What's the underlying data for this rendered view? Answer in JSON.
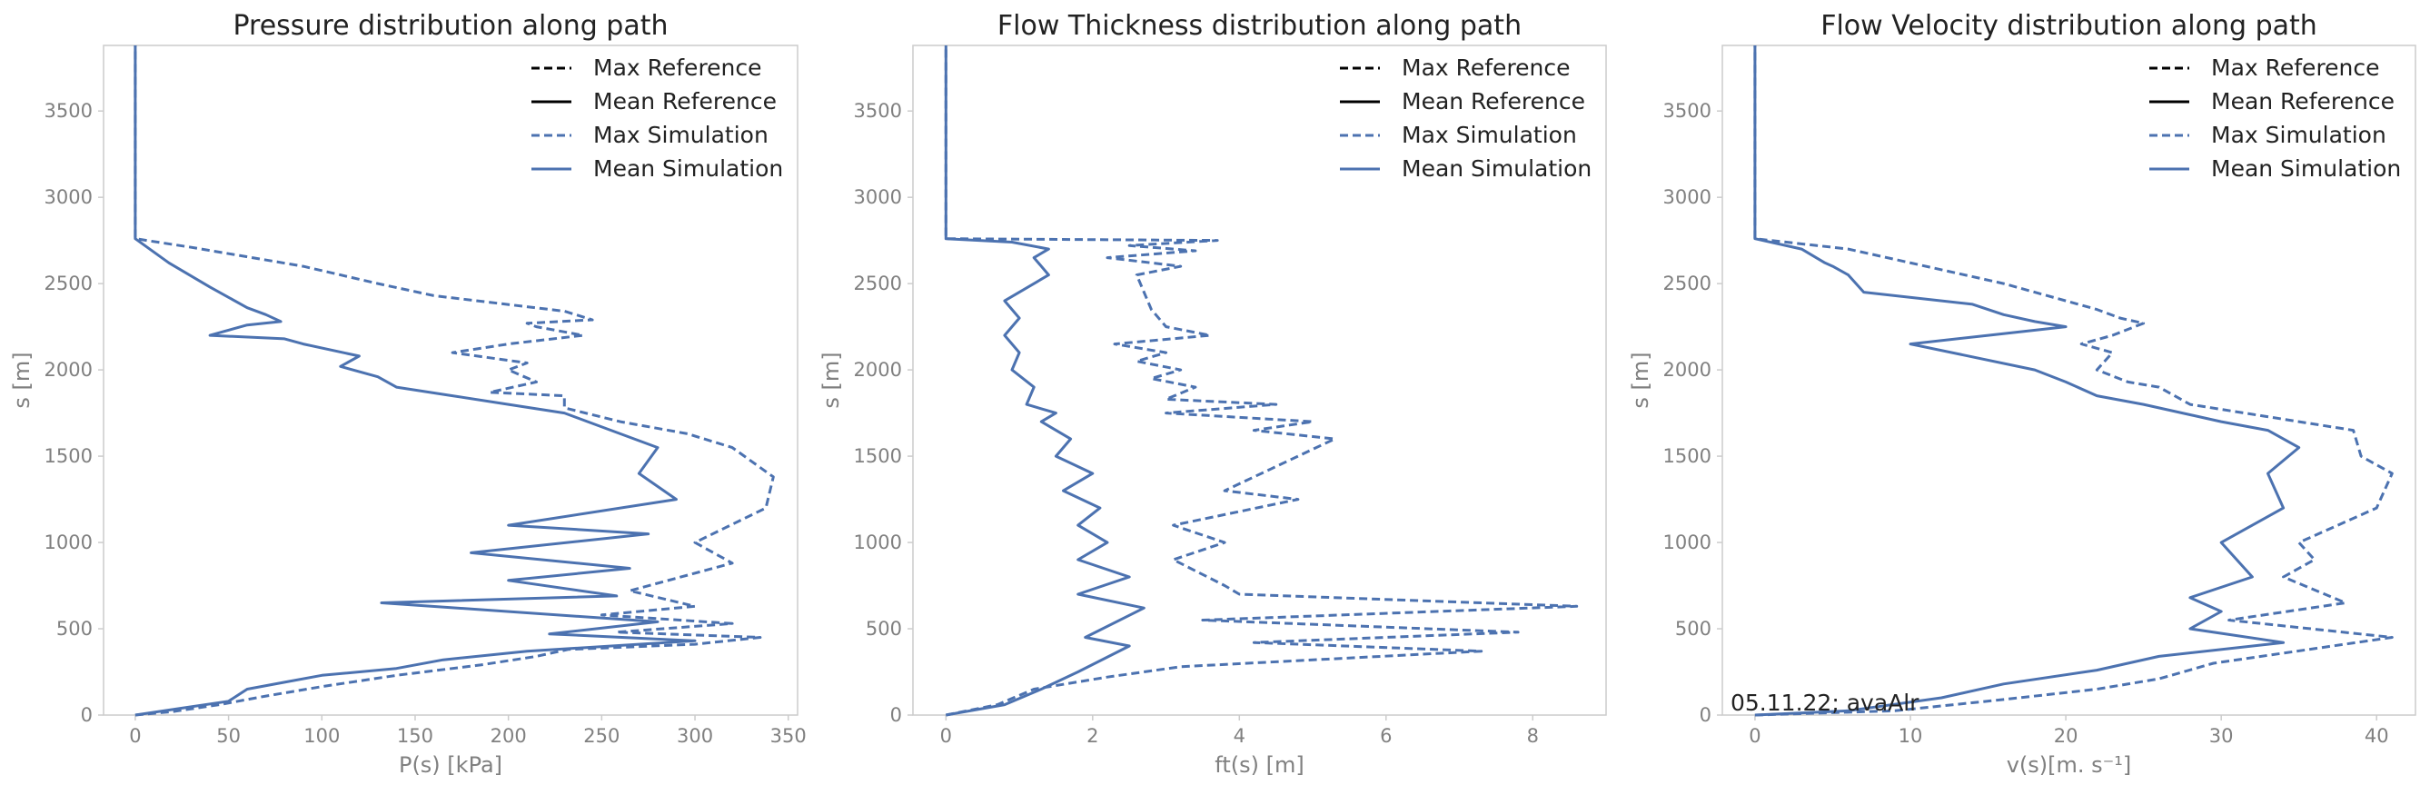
{
  "footnote": "05.11.22; avaAlr",
  "colors": {
    "reference": "#000000",
    "simulation": "#4c72b0",
    "axes": "#cccccc",
    "text": "#808080"
  },
  "legend": [
    {
      "label": "Max Reference",
      "style": "dashed",
      "color": "#000000"
    },
    {
      "label": "Mean Reference",
      "style": "solid",
      "color": "#000000"
    },
    {
      "label": "Max Simulation",
      "style": "dashed",
      "color": "#4c72b0"
    },
    {
      "label": "Mean Simulation",
      "style": "solid",
      "color": "#4c72b0"
    }
  ],
  "chart_data": [
    {
      "type": "line",
      "title": "Pressure distribution along path",
      "xlabel": "P(s) [kPa]",
      "ylabel": "s [m]",
      "xlim": [
        -17,
        355
      ],
      "ylim": [
        0,
        3880
      ],
      "xticks": [
        0,
        50,
        100,
        150,
        200,
        250,
        300,
        350
      ],
      "yticks": [
        0,
        500,
        1000,
        1500,
        2000,
        2500,
        3000,
        3500
      ],
      "legend_position": "top-right",
      "grid": false,
      "series": [
        {
          "name": "Max Simulation",
          "style": "dashed",
          "x": [
            0,
            20,
            45,
            70,
            100,
            140,
            185,
            215,
            232,
            300,
            335,
            258,
            320,
            250,
            300,
            265,
            320,
            300,
            338,
            342,
            320,
            296,
            260,
            230,
            230,
            190,
            215,
            200,
            210,
            170,
            200,
            240,
            215,
            210,
            245,
            230,
            160,
            130,
            90,
            30,
            0,
            0
          ],
          "y": [
            0,
            20,
            60,
            110,
            165,
            230,
            290,
            340,
            380,
            410,
            450,
            480,
            530,
            580,
            630,
            720,
            880,
            1000,
            1200,
            1380,
            1550,
            1630,
            1700,
            1780,
            1850,
            1870,
            1930,
            2000,
            2040,
            2100,
            2150,
            2200,
            2250,
            2270,
            2290,
            2340,
            2430,
            2500,
            2600,
            2710,
            2760,
            3880
          ]
        },
        {
          "name": "Mean Simulation",
          "style": "solid",
          "x": [
            0,
            25,
            50,
            60,
            80,
            100,
            140,
            165,
            210,
            300,
            222,
            280,
            132,
            258,
            200,
            265,
            180,
            275,
            200,
            290,
            270,
            280,
            255,
            230,
            200,
            170,
            140,
            130,
            110,
            120,
            90,
            80,
            40,
            60,
            78,
            70,
            60,
            40,
            18,
            0,
            0
          ],
          "y": [
            0,
            40,
            80,
            150,
            190,
            230,
            270,
            320,
            370,
            430,
            470,
            540,
            650,
            690,
            780,
            850,
            940,
            1050,
            1100,
            1250,
            1400,
            1550,
            1650,
            1750,
            1800,
            1850,
            1900,
            1960,
            2020,
            2080,
            2150,
            2180,
            2200,
            2260,
            2280,
            2320,
            2360,
            2480,
            2620,
            2760,
            3880
          ]
        }
      ]
    },
    {
      "type": "line",
      "title": "Flow Thickness distribution along path",
      "xlabel": "ft(s) [m]",
      "ylabel": "s [m]",
      "xlim": [
        -0.45,
        9.0
      ],
      "ylim": [
        0,
        3880
      ],
      "xticks": [
        0,
        2,
        4,
        6,
        8
      ],
      "yticks": [
        0,
        500,
        1000,
        1500,
        2000,
        2500,
        3000,
        3500
      ],
      "legend_position": "top-right",
      "grid": false,
      "series": [
        {
          "name": "Max Simulation",
          "style": "dashed",
          "x": [
            0,
            0.7,
            1.2,
            2.2,
            3.2,
            7.3,
            4.2,
            7.8,
            3.5,
            8.6,
            4.0,
            3.8,
            3.1,
            3.8,
            3.1,
            4.8,
            3.8,
            5.3,
            4.2,
            5.0,
            3.0,
            4.5,
            3.0,
            3.4,
            2.8,
            3.2,
            2.6,
            3.0,
            2.3,
            3.6,
            3.0,
            2.8,
            2.6,
            3.2,
            2.2,
            3.4,
            2.5,
            3.7,
            0,
            0
          ],
          "y": [
            0,
            60,
            150,
            220,
            280,
            370,
            420,
            480,
            550,
            630,
            700,
            750,
            900,
            1000,
            1100,
            1250,
            1300,
            1600,
            1650,
            1700,
            1750,
            1800,
            1830,
            1900,
            1950,
            2000,
            2050,
            2100,
            2150,
            2200,
            2250,
            2350,
            2550,
            2600,
            2650,
            2690,
            2720,
            2750,
            2760,
            3880
          ]
        },
        {
          "name": "Mean Simulation",
          "style": "solid",
          "x": [
            0,
            0.8,
            1.3,
            1.8,
            2.5,
            1.9,
            2.7,
            1.8,
            2.5,
            1.8,
            2.2,
            1.8,
            2.1,
            1.6,
            2.0,
            1.5,
            1.7,
            1.3,
            1.5,
            1.1,
            1.2,
            0.9,
            1.0,
            0.8,
            1.0,
            0.8,
            1.4,
            1.2,
            1.4,
            0.9,
            0,
            0
          ],
          "y": [
            0,
            60,
            150,
            250,
            400,
            450,
            620,
            700,
            800,
            900,
            1000,
            1100,
            1200,
            1300,
            1400,
            1500,
            1600,
            1700,
            1750,
            1800,
            1900,
            2000,
            2100,
            2200,
            2300,
            2400,
            2550,
            2650,
            2700,
            2740,
            2760,
            3880
          ]
        }
      ]
    },
    {
      "type": "line",
      "title": "Flow Velocity distribution along path",
      "xlabel": "v(s)[m. s⁻¹]",
      "ylabel": "s [m]",
      "xlim": [
        -2.1,
        42.5
      ],
      "ylim": [
        0,
        3880
      ],
      "xticks": [
        0,
        10,
        20,
        30,
        40
      ],
      "yticks": [
        0,
        500,
        1000,
        1500,
        2000,
        2500,
        3000,
        3500
      ],
      "legend_position": "top-right",
      "grid": false,
      "series": [
        {
          "name": "Max Simulation",
          "style": "dashed",
          "x": [
            0,
            9,
            16,
            22,
            26,
            29.5,
            41,
            30.5,
            38,
            34,
            36,
            35,
            40,
            41,
            39,
            38.5,
            35,
            28,
            26,
            24,
            22,
            23,
            21,
            23,
            25,
            23.5,
            22,
            16,
            6,
            0,
            0
          ],
          "y": [
            0,
            25,
            90,
            150,
            210,
            300,
            450,
            550,
            650,
            800,
            900,
            1000,
            1200,
            1400,
            1500,
            1650,
            1700,
            1800,
            1900,
            1930,
            2000,
            2100,
            2150,
            2200,
            2270,
            2300,
            2350,
            2500,
            2700,
            2760,
            3880
          ]
        },
        {
          "name": "Mean Simulation",
          "style": "solid",
          "x": [
            0,
            6,
            12,
            16,
            22,
            26,
            34,
            28,
            30,
            28,
            32,
            30,
            34,
            33,
            35,
            33,
            30,
            25,
            22,
            20,
            18,
            10,
            15,
            20,
            18,
            16,
            14,
            7,
            6,
            5,
            4.5,
            3,
            0,
            0
          ],
          "y": [
            0,
            25,
            100,
            180,
            260,
            340,
            420,
            500,
            600,
            680,
            800,
            1000,
            1200,
            1400,
            1550,
            1650,
            1700,
            1800,
            1850,
            1930,
            2000,
            2150,
            2200,
            2250,
            2280,
            2320,
            2380,
            2450,
            2550,
            2600,
            2620,
            2700,
            2760,
            3880
          ]
        }
      ]
    }
  ]
}
